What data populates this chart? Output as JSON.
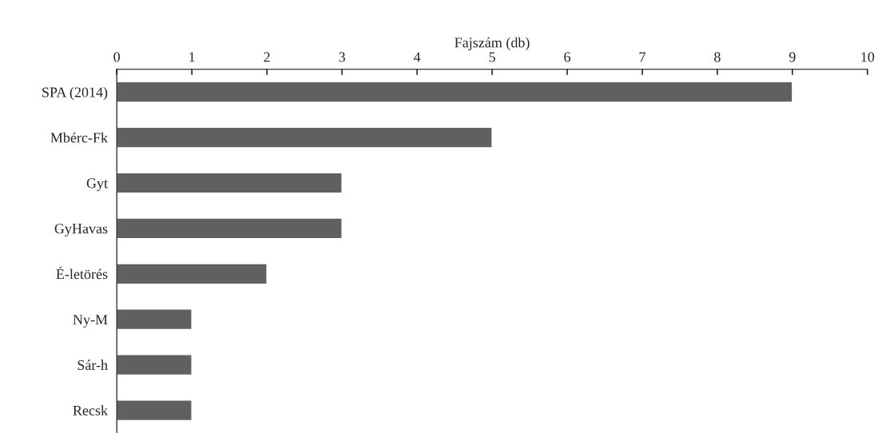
{
  "chart_data": {
    "type": "bar",
    "orientation": "horizontal",
    "xlabel": "Fajszám (db)",
    "categories": [
      "SPA (2014)",
      "Mbérc-Fk",
      "Gyt",
      "GyHavas",
      "É-letörés",
      "Ny-M",
      "Sár-h",
      "Recsk"
    ],
    "values": [
      9,
      5,
      3,
      3,
      2,
      1,
      1,
      1
    ],
    "color": "#606060",
    "xlim": [
      0,
      10
    ],
    "xticks": [
      0,
      1,
      2,
      3,
      4,
      5,
      6,
      7,
      8,
      9,
      10
    ],
    "grid": false,
    "legend": false
  }
}
